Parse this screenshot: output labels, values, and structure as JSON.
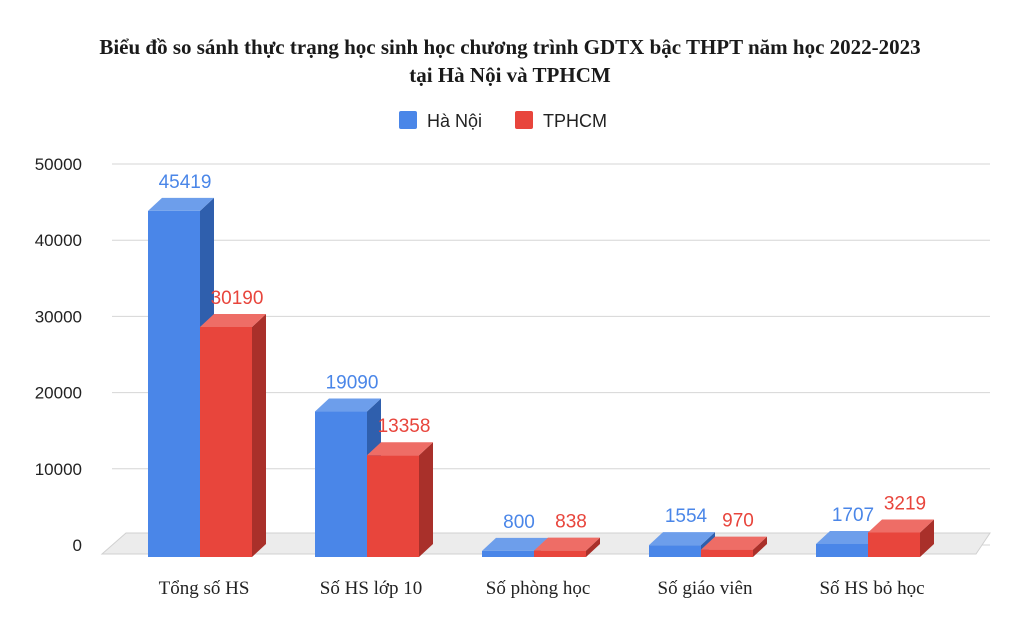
{
  "chart_data": {
    "type": "bar",
    "title_line1": "Biểu đồ so sánh thực trạng học sinh học chương trình GDTX bậc THPT năm học 2022-2023",
    "title_line2": "tại Hà Nội và TPHCM",
    "categories": [
      "Tổng số HS",
      "Số HS lớp 10",
      "Số phòng học",
      "Số giáo viên",
      "Số HS bỏ học"
    ],
    "series": [
      {
        "name": "Hà Nội",
        "color": "#4a86e8",
        "side_color": "#2f5fad",
        "top_color": "#6d9eeb",
        "label_color": "#4a86e8",
        "values": [
          45419,
          19090,
          800,
          1554,
          1707
        ]
      },
      {
        "name": "TPHCM",
        "color": "#e8453c",
        "side_color": "#a9302a",
        "top_color": "#ee6d66",
        "label_color": "#e8453c",
        "values": [
          30190,
          13358,
          838,
          970,
          3219
        ]
      }
    ],
    "y_ticks": [
      "0",
      "10000",
      "20000",
      "30000",
      "40000",
      "50000"
    ],
    "ylim": [
      0,
      50000
    ],
    "grid": true,
    "legend_position": "top"
  }
}
